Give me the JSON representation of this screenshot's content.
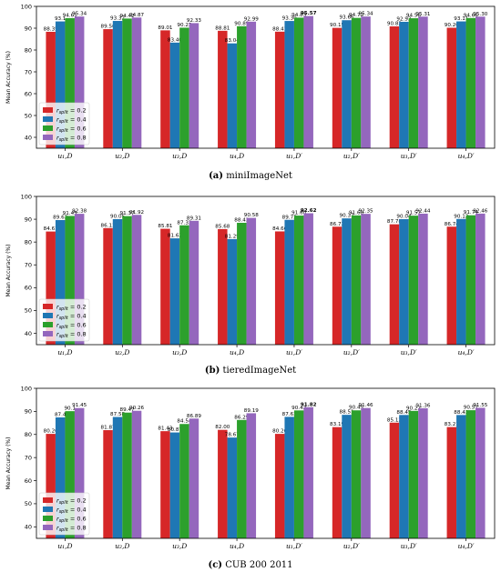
{
  "chart_data": [
    {
      "type": "bar",
      "caption_letter": "(a)",
      "caption_text": "miniImageNet",
      "ylabel": "Mean Accuracy (%)",
      "ylim": [
        35,
        100
      ],
      "yticks": [
        40,
        50,
        60,
        70,
        80,
        90,
        100
      ],
      "categories": [
        "u₁,D",
        "u₂,D",
        "u₃,D",
        "u₄,D",
        "u₁,D′",
        "u₂,D′",
        "u₃,D′",
        "u₄,D′"
      ],
      "series": [
        {
          "name": "r_split = 0.2",
          "color": "#d62728",
          "values": [
            88.35,
            89.56,
            89.01,
            88.81,
            88.41,
            90.15,
            90.82,
            90.2
          ]
        },
        {
          "name": "r_split = 0.4",
          "color": "#1f77b4",
          "values": [
            93.1,
            93.32,
            83.4,
            83.04,
            93.3,
            93.66,
            92.93,
            93.11
          ]
        },
        {
          "name": "r_split = 0.6",
          "color": "#2ca02c",
          "values": [
            94.61,
            94.42,
            90.23,
            90.89,
            94.83,
            94.72,
            94.56,
            94.66
          ]
        },
        {
          "name": "r_split = 0.8",
          "color": "#9467bd",
          "values": [
            95.34,
            94.87,
            92.33,
            92.99,
            95.57,
            95.34,
            95.31,
            95.3
          ]
        }
      ],
      "value_labels": [
        [
          "88.35",
          "93.1",
          "94.61",
          "95.34"
        ],
        [
          "89.56",
          "93.32",
          "94.42",
          "94.87"
        ],
        [
          "89.01",
          "83.40",
          "90.23",
          "92.33"
        ],
        [
          "88.81",
          "83.04",
          "90.89",
          "92.99"
        ],
        [
          "88.41",
          "93.30",
          "94.83",
          "95.57"
        ],
        [
          "90.15",
          "93.66",
          "94.72",
          "95.34"
        ],
        [
          "90.82",
          "92.93",
          "94.56",
          "95.31"
        ],
        [
          "90.20",
          "93.11",
          "94.66",
          "95.30"
        ]
      ],
      "bold_label": [
        4,
        3
      ],
      "legend_position": "bottom-left",
      "grid": false
    },
    {
      "type": "bar",
      "caption_letter": "(b)",
      "caption_text": "tieredImageNet",
      "ylabel": "Mean Accuracy (%)",
      "ylim": [
        35,
        100
      ],
      "yticks": [
        40,
        50,
        60,
        70,
        80,
        90,
        100
      ],
      "categories": [
        "u₁,D",
        "u₂,D",
        "u₃,D",
        "u₄,D",
        "u₁,D′",
        "u₂,D′",
        "u₃,D′",
        "u₄,D′"
      ],
      "series": [
        {
          "name": "r_split = 0.2",
          "color": "#d62728",
          "values": [
            84.61,
            86.11,
            85.81,
            85.68,
            84.66,
            86.73,
            87.78,
            86.74
          ]
        },
        {
          "name": "r_split = 0.4",
          "color": "#1f77b4",
          "values": [
            89.63,
            90.05,
            81.62,
            81.29,
            89.73,
            90.37,
            90.04,
            90.12
          ]
        },
        {
          "name": "r_split = 0.6",
          "color": "#2ca02c",
          "values": [
            91.45,
            91.37,
            87.33,
            88.43,
            91.6,
            91.68,
            91.57,
            91.74
          ]
        },
        {
          "name": "r_split = 0.8",
          "color": "#9467bd",
          "values": [
            92.38,
            91.92,
            89.31,
            90.58,
            92.62,
            92.35,
            92.44,
            92.46
          ]
        }
      ],
      "value_labels": [
        [
          "84.61",
          "89.63",
          "91.45",
          "92.38"
        ],
        [
          "86.11",
          "90.05",
          "91.37",
          "91.92"
        ],
        [
          "85.81",
          "81.62",
          "87.33",
          "89.31"
        ],
        [
          "85.68",
          "81.29",
          "88.43",
          "90.58"
        ],
        [
          "84.66",
          "89.73",
          "91.60",
          "92.62"
        ],
        [
          "86.73",
          "90.37",
          "91.68",
          "92.35"
        ],
        [
          "87.78",
          "90.04",
          "91.57",
          "92.44"
        ],
        [
          "86.74",
          "90.12",
          "91.74",
          "92.46"
        ]
      ],
      "bold_label": [
        4,
        3
      ],
      "legend_position": "bottom-left",
      "grid": false
    },
    {
      "type": "bar",
      "caption_letter": "(c)",
      "caption_text": "CUB 200 2011",
      "ylabel": "Mean Accuracy (%)",
      "ylim": [
        35,
        100
      ],
      "yticks": [
        40,
        50,
        60,
        70,
        80,
        90,
        100
      ],
      "categories": [
        "u₁,D",
        "u₂,D",
        "u₃,D",
        "u₄,D",
        "u₁,D′",
        "u₂,D′",
        "u₃,D′",
        "u₄,D′"
      ],
      "series": [
        {
          "name": "r_split = 0.2",
          "color": "#d62728",
          "values": [
            80.26,
            81.87,
            81.43,
            82.0,
            80.26,
            83.19,
            85.12,
            83.21
          ]
        },
        {
          "name": "r_split = 0.4",
          "color": "#1f77b4",
          "values": [
            87.4,
            87.58,
            80.87,
            78.67,
            87.63,
            88.51,
            88.45,
            88.43
          ]
        },
        {
          "name": "r_split = 0.6",
          "color": "#2ca02c",
          "values": [
            90.1,
            89.47,
            84.54,
            86.29,
            90.42,
            90.45,
            90.22,
            90.51
          ]
        },
        {
          "name": "r_split = 0.8",
          "color": "#9467bd",
          "values": [
            91.45,
            90.26,
            86.89,
            89.19,
            91.82,
            91.46,
            91.36,
            91.55
          ]
        }
      ],
      "value_labels": [
        [
          "80.26",
          "87.4",
          "90.1",
          "91.45"
        ],
        [
          "81.87",
          "87.58",
          "89.47",
          "90.26"
        ],
        [
          "81.43",
          "80.87",
          "84.54",
          "86.89"
        ],
        [
          "82.00",
          "78.67",
          "86.29",
          "89.19"
        ],
        [
          "80.26",
          "87.63",
          "90.42",
          "91.82"
        ],
        [
          "83.19",
          "88.51",
          "90.45",
          "91.46"
        ],
        [
          "85.12",
          "88.45",
          "90.22",
          "91.36"
        ],
        [
          "83.21",
          "88.43",
          "90.51",
          "91.55"
        ]
      ],
      "bold_label": [
        4,
        3
      ],
      "legend_position": "bottom-left",
      "grid": false
    }
  ],
  "legend_labels": [
    "r_split = 0.2",
    "r_split = 0.4",
    "r_split = 0.6",
    "r_split = 0.8"
  ]
}
